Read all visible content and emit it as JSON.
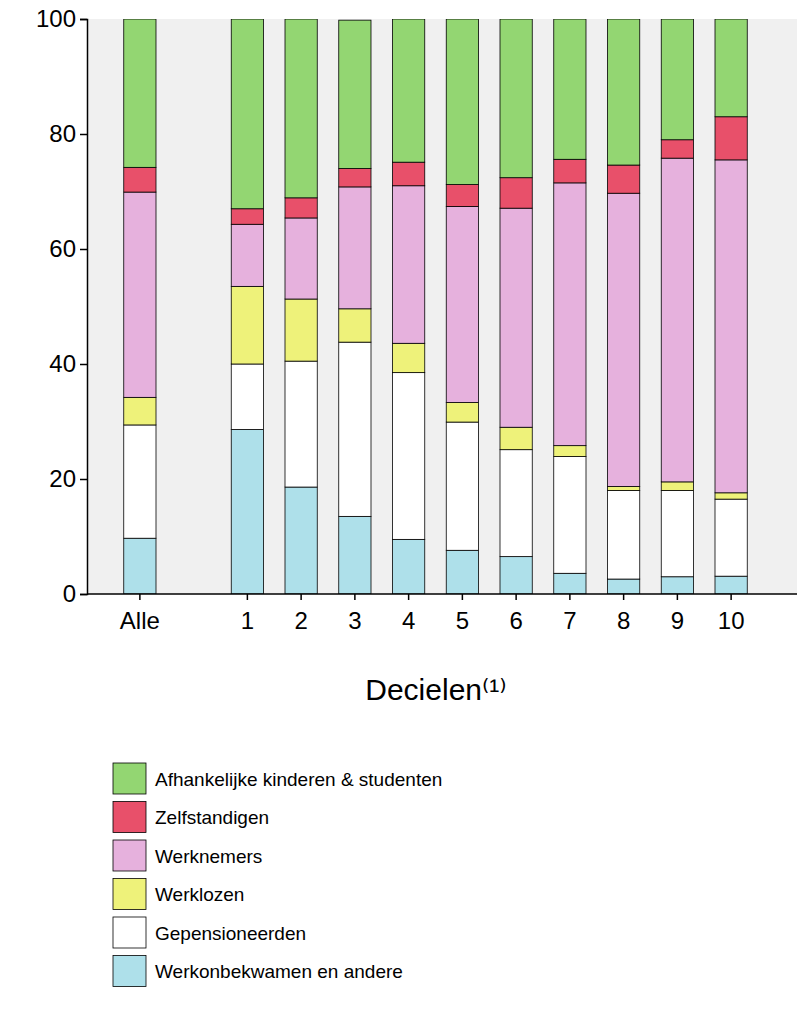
{
  "chart_data": {
    "type": "bar",
    "stacked": true,
    "x_label": "Decielen⁽¹⁾",
    "categories": [
      "Alle",
      null,
      "1",
      "2",
      "3",
      "4",
      "5",
      "6",
      "7",
      "8",
      "9",
      "10"
    ],
    "series": [
      {
        "name": "Werkonbekwamen en andere",
        "color": "#aee0ea",
        "values": [
          9.7,
          null,
          28.6,
          18.6,
          13.5,
          9.5,
          7.6,
          6.5,
          3.6,
          2.6,
          3.0,
          3.1
        ]
      },
      {
        "name": "Gepensioneerden",
        "color": "#ffffff",
        "values": [
          19.7,
          null,
          11.4,
          21.9,
          30.3,
          29.0,
          22.3,
          18.6,
          20.3,
          15.4,
          15.0,
          13.4
        ]
      },
      {
        "name": "Werklozen",
        "color": "#eef27a",
        "values": [
          4.8,
          null,
          13.5,
          10.8,
          5.8,
          5.1,
          3.4,
          3.9,
          1.9,
          0.7,
          1.5,
          1.1
        ]
      },
      {
        "name": "Werknemers",
        "color": "#e6b1dd",
        "values": [
          35.7,
          null,
          10.8,
          14.1,
          21.2,
          27.4,
          34.1,
          38.1,
          45.7,
          51.0,
          56.3,
          57.9
        ]
      },
      {
        "name": "Zelfstandigen",
        "color": "#e8506a",
        "values": [
          4.3,
          null,
          2.7,
          3.5,
          3.2,
          4.1,
          3.8,
          5.3,
          4.1,
          4.9,
          3.2,
          7.5
        ]
      },
      {
        "name": "Afhankelijke kinderen & studenten",
        "color": "#93d672",
        "values": [
          25.8,
          null,
          33.0,
          31.1,
          25.8,
          24.9,
          28.8,
          27.6,
          24.4,
          25.4,
          21.0,
          17.0
        ]
      }
    ],
    "ylim": [
      0,
      100
    ],
    "yticks": [
      0,
      20,
      40,
      60,
      80,
      100
    ],
    "grid": false,
    "legend": "bottom-left"
  }
}
